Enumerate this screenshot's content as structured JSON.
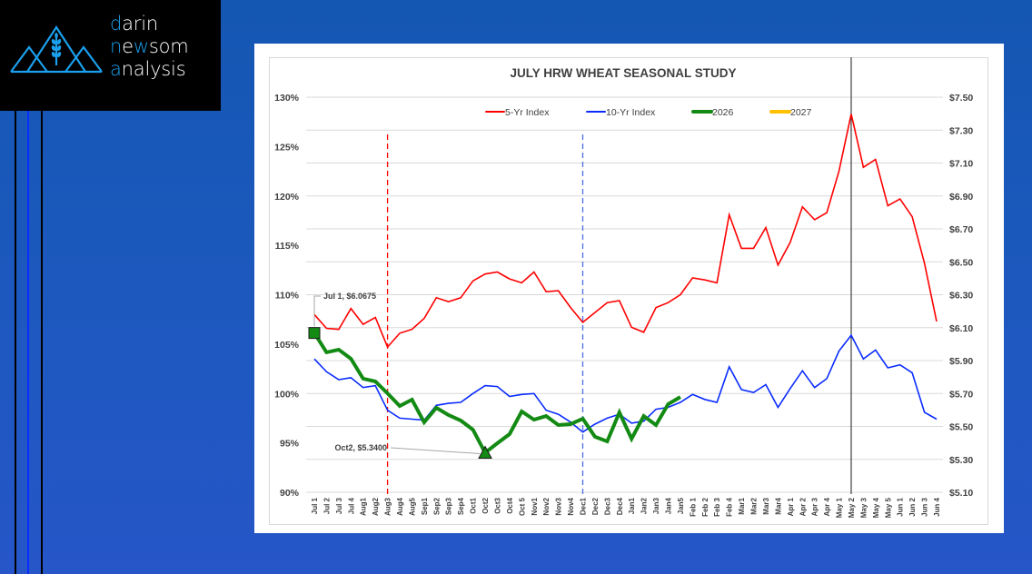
{
  "logo": {
    "line1": {
      "accent": "d",
      "rest": "arin"
    },
    "line2": {
      "pre": "n",
      "mid1": "e",
      "accent": "w",
      "rest": "som"
    },
    "line3": {
      "accent": "a",
      "rest": "nalysis"
    },
    "accent_color": "#1aa0ee",
    "icon": "mountains-wheat-icon"
  },
  "decor": {
    "lines": [
      {
        "color": "#000000"
      },
      {
        "color": "#0a2cff"
      },
      {
        "color": "#000000"
      }
    ]
  },
  "chart_data": {
    "type": "line",
    "title": "JULY HRW WHEAT SEASONAL STUDY",
    "xlabel": "",
    "ylabel_left": "",
    "ylabel_right": "",
    "grid": true,
    "legend_position": "top",
    "categories": [
      "Jul 1",
      "Jul 2",
      "Jul 3",
      "Jul 4",
      "Aug1",
      "Aug2",
      "Aug3",
      "Aug4",
      "Aug5",
      "Sep1",
      "Sep2",
      "Sep3",
      "Sep4",
      "Oct1",
      "Oct2",
      "Oct3",
      "Oct4",
      "Oct 5",
      "Nov1",
      "Nov2",
      "Nov3",
      "Nov4",
      "Dec1",
      "Dec2",
      "Dec3",
      "Dec4",
      "Jan1",
      "Jan2",
      "Jan3",
      "Jan4",
      "Jan5",
      "Feb 1",
      "Feb 2",
      "Feb 3",
      "Feb 4",
      "Mar1",
      "Mar2",
      "Mar3",
      "Mar4",
      "Apr 1",
      "Apr 2",
      "Apr 3",
      "Apr 4",
      "May 1",
      "May 2",
      "May 3",
      "May 4",
      "May 5",
      "Jun 1",
      "Jun 2",
      "Jun 3",
      "Jun 4"
    ],
    "y_left": {
      "min": 90,
      "max": 130,
      "step": 5,
      "format": "percent",
      "tick_labels": [
        "130%",
        "125%",
        "120%",
        "115%",
        "110%",
        "105%",
        "100%",
        "95%",
        "90%"
      ]
    },
    "y_right": {
      "min": 5.1,
      "max": 7.5,
      "step": 0.2,
      "format": "dollar",
      "tick_labels": [
        "$7.50",
        "$7.30",
        "$7.10",
        "$6.90",
        "$6.70",
        "$6.50",
        "$6.30",
        "$6.10",
        "$5.90",
        "$5.70",
        "$5.50",
        "$5.30",
        "$5.10"
      ]
    },
    "series": [
      {
        "name": "5-Yr Index",
        "axis": "left",
        "color": "#ff0000",
        "values": [
          108.0,
          106.6,
          106.5,
          108.6,
          107.0,
          107.7,
          104.7,
          106.1,
          106.5,
          107.6,
          109.7,
          109.3,
          109.7,
          111.4,
          112.1,
          112.3,
          111.6,
          111.2,
          112.3,
          110.3,
          110.4,
          108.7,
          107.2,
          108.2,
          109.2,
          109.4,
          106.7,
          106.2,
          108.7,
          109.2,
          110.0,
          111.7,
          111.5,
          111.2,
          118.1,
          114.7,
          114.7,
          116.8,
          113.0,
          115.3,
          118.9,
          117.6,
          118.3,
          122.5,
          128.3,
          122.9,
          123.7,
          119.0,
          119.7,
          117.9,
          113.2,
          107.3
        ]
      },
      {
        "name": "10-Yr Index",
        "axis": "left",
        "color": "#0a2cff",
        "values": [
          103.5,
          102.2,
          101.4,
          101.6,
          100.6,
          100.8,
          98.3,
          97.5,
          97.4,
          97.3,
          98.8,
          99.0,
          99.1,
          100.0,
          100.8,
          100.7,
          99.7,
          99.9,
          100.0,
          98.3,
          97.9,
          97.1,
          96.1,
          96.9,
          97.5,
          97.9,
          97.0,
          97.2,
          98.4,
          98.6,
          99.1,
          99.9,
          99.4,
          99.1,
          102.7,
          100.4,
          100.1,
          100.9,
          98.6,
          100.5,
          102.3,
          100.6,
          101.5,
          104.3,
          105.9,
          103.5,
          104.4,
          102.6,
          102.9,
          102.1,
          98.1,
          97.4
        ]
      },
      {
        "name": "2026",
        "axis": "right",
        "color": "#138a13",
        "values": [
          6.0675,
          5.95,
          5.966,
          5.911,
          5.79,
          5.773,
          5.701,
          5.624,
          5.663,
          5.525,
          5.613,
          5.569,
          5.536,
          5.48,
          5.34,
          5.398,
          5.453,
          5.591,
          5.541,
          5.563,
          5.508,
          5.514,
          5.547,
          5.437,
          5.409,
          5.585,
          5.425,
          5.563,
          5.508,
          5.635,
          5.679
        ]
      },
      {
        "name": "2027",
        "axis": "right",
        "color": "#ffc000",
        "values": []
      }
    ],
    "vertical_markers": [
      {
        "at": "Aug3",
        "color": "#ff0000",
        "style": "dashed"
      },
      {
        "at": "Dec1",
        "color": "#4a6fe0",
        "style": "dashed"
      },
      {
        "at": "May 2",
        "color": "#404040",
        "style": "solid"
      }
    ],
    "annotations": [
      {
        "at": "Jul 1",
        "series": "2026",
        "label": "Jul 1, $6.0675",
        "marker": "square"
      },
      {
        "at": "Oct2",
        "series": "2026",
        "label": "Oct2, $5.3400",
        "marker": "triangle"
      }
    ]
  }
}
